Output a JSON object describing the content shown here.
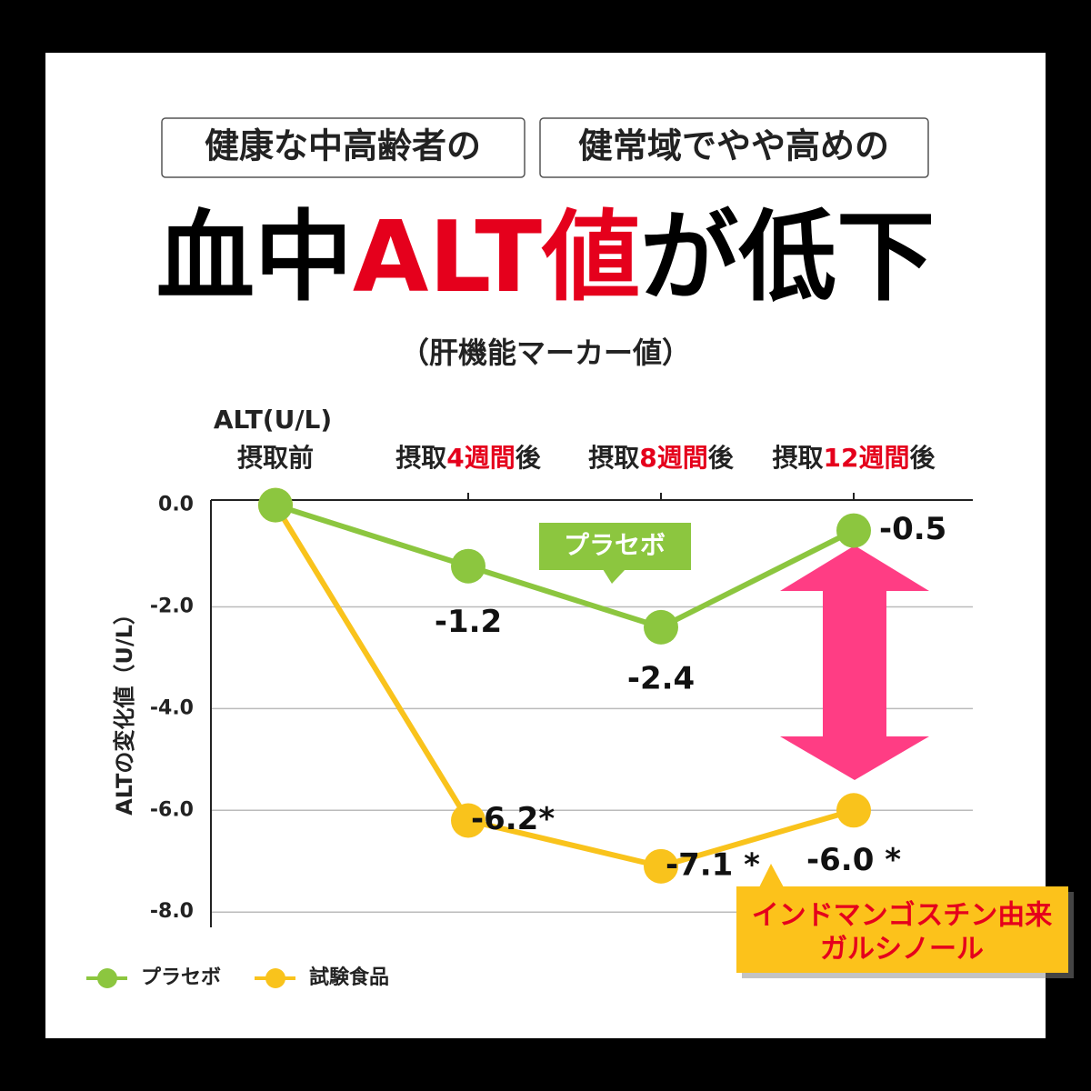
{
  "header": {
    "tags": [
      "健康な中高齢者の",
      "健常域でやや高めの"
    ],
    "subtitle": "（肝機能マーカー値）"
  },
  "chart_data": {
    "type": "line",
    "title": "血中ALT値が低下",
    "unit_label": "ALT(U/L)",
    "y_label": "ALTの変化値（U/L）",
    "categories": [
      "摂取前",
      "摂取4週間後",
      "摂取8週間後",
      "摂取12週間後"
    ],
    "series": [
      {
        "name": "プラセボ",
        "color": "#8cc63f",
        "values": [
          0,
          -1.2,
          -2.4,
          -0.5
        ],
        "value_labels": [
          null,
          "-1.2",
          "-2.4",
          "-0.5"
        ]
      },
      {
        "name": "試験食品",
        "color": "#f9c31c",
        "values": [
          0,
          -6.2,
          -7.1,
          -6.0
        ],
        "value_labels": [
          null,
          "-6.2*",
          "-7.1 *",
          "-6.0 *"
        ]
      }
    ],
    "ylim": [
      -8.3,
      0.1
    ],
    "yticks": [
      {
        "value": 0,
        "label": "0.0"
      },
      {
        "value": -2,
        "label": "-2.0"
      },
      {
        "value": -4,
        "label": "-4.0"
      },
      {
        "value": -6,
        "label": "-6.0"
      },
      {
        "value": -8,
        "label": "-8.0"
      }
    ],
    "grid": true,
    "legend": "bottom-left",
    "annotations": [
      "プラセボ",
      "インドマンゴスチン由来",
      "ガルシノール"
    ]
  }
}
